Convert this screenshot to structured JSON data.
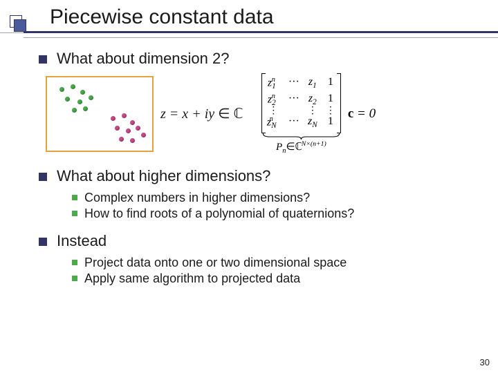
{
  "title": "Piecewise constant data",
  "bullets": {
    "b1": "What about dimension 2?",
    "b2": "What about higher dimensions?",
    "b2_sub": [
      "Complex numbers in higher dimensions?",
      "How to find roots of a polynomial of quaternions?"
    ],
    "b3": "Instead",
    "b3_sub": [
      "Project data onto one or two dimensional space",
      "Apply same algorithm to projected data"
    ]
  },
  "formula_plain": "z = x + iy ∈ ℂ",
  "matrix": {
    "rows": [
      [
        "z₁ⁿ",
        "···",
        "z₁",
        "1"
      ],
      [
        "z₂ⁿ",
        "···",
        "z₂",
        "1"
      ],
      [
        "⋮",
        "",
        "⋮",
        "⋮"
      ],
      [
        "zₙⁿ",
        "···",
        "zₙ",
        "1"
      ]
    ],
    "under_label": "Pₙ ∈ ℂᴺˣ⁽ⁿ⁺¹⁾"
  },
  "ceq_text": "c = 0",
  "scatter": {
    "border_color": "#e6a23c",
    "clusters": [
      {
        "color": "#4bab4b",
        "points": [
          [
            18,
            14
          ],
          [
            34,
            10
          ],
          [
            48,
            18
          ],
          [
            26,
            28
          ],
          [
            44,
            32
          ],
          [
            60,
            26
          ],
          [
            36,
            44
          ],
          [
            52,
            42
          ]
        ]
      },
      {
        "color": "#c84a8a",
        "points": [
          [
            92,
            56
          ],
          [
            108,
            52
          ],
          [
            120,
            62
          ],
          [
            98,
            70
          ],
          [
            114,
            74
          ],
          [
            128,
            70
          ],
          [
            104,
            86
          ],
          [
            120,
            88
          ],
          [
            136,
            80
          ]
        ]
      }
    ]
  },
  "colors": {
    "title_accent": "#333366",
    "sub_bullet": "#4bab4b",
    "background": "#ffffff"
  },
  "slide_number": "30"
}
